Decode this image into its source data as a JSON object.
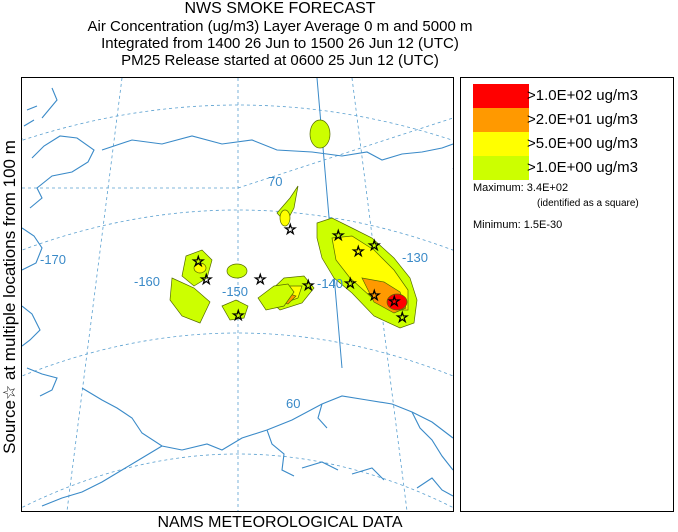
{
  "header": {
    "title": "NWS SMOKE FORECAST",
    "line2": "Air Concentration (ug/m3) Layer Average    0 m and  5000 m",
    "line3": "Integrated from 1400 26 Jun to 1500 26 Jun 12 (UTC)",
    "line4": "PM25 Release started at 0600 25 Jun 12 (UTC)"
  },
  "side_label": "Source☆ at multiple locations  from  100 m",
  "map": {
    "longitude_labels": [
      "-170",
      "-160",
      "-150",
      "-140",
      "-130"
    ],
    "latitude_labels": [
      "70",
      "60"
    ],
    "colors": {
      "water": "#3a8ac8",
      "grid": "#5aa0d0"
    }
  },
  "legend": {
    "entries": [
      {
        "label": ">1.0E+02 ug/m3",
        "color": "#ff0000"
      },
      {
        "label": ">2.0E+01 ug/m3",
        "color": "#ff9900"
      },
      {
        "label": ">5.0E+00 ug/m3",
        "color": "#ffff00"
      },
      {
        "label": ">1.0E+00 ug/m3",
        "color": "#ccff00"
      }
    ],
    "maximum_label": "Maximum: 3.4E+02",
    "maximum_note": "(identified as a square)",
    "minimum_label": "Minimum: 1.5E-30"
  },
  "footer": "NAMS METEOROLOGICAL DATA"
}
